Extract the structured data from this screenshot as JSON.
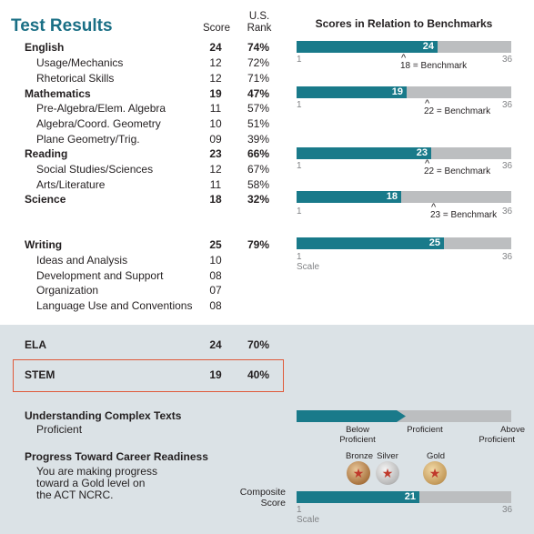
{
  "title": "Test Results",
  "headers": {
    "score": "Score",
    "us_rank_1": "U.S.",
    "us_rank_2": "Rank",
    "benchmarks": "Scores in Relation to Benchmarks"
  },
  "rows": {
    "english": {
      "label": "English",
      "score": "24",
      "rank": "74%"
    },
    "usage": {
      "label": "Usage/Mechanics",
      "score": "12",
      "rank": "72%"
    },
    "rhetorical": {
      "label": "Rhetorical Skills",
      "score": "12",
      "rank": "71%"
    },
    "math": {
      "label": "Mathematics",
      "score": "19",
      "rank": "47%"
    },
    "prealg": {
      "label": "Pre-Algebra/Elem. Algebra",
      "score": "11",
      "rank": "57%"
    },
    "algcoord": {
      "label": "Algebra/Coord. Geometry",
      "score": "10",
      "rank": "51%"
    },
    "plane": {
      "label": "Plane Geometry/Trig.",
      "score": "09",
      "rank": "39%"
    },
    "reading": {
      "label": "Reading",
      "score": "23",
      "rank": "66%"
    },
    "social": {
      "label": "Social Studies/Sciences",
      "score": "12",
      "rank": "67%"
    },
    "arts": {
      "label": "Arts/Literature",
      "score": "11",
      "rank": "58%"
    },
    "science": {
      "label": "Science",
      "score": "18",
      "rank": "32%"
    },
    "writing": {
      "label": "Writing",
      "score": "25",
      "rank": "79%"
    },
    "ideas": {
      "label": "Ideas and Analysis",
      "score": "10"
    },
    "development": {
      "label": "Development and Support",
      "score": "08"
    },
    "organization": {
      "label": "Organization",
      "score": "07"
    },
    "language": {
      "label": "Language Use and Conventions",
      "score": "08"
    },
    "ela": {
      "label": "ELA",
      "score": "24",
      "rank": "70%"
    },
    "stem": {
      "label": "STEM",
      "score": "19",
      "rank": "40%"
    }
  },
  "bars": {
    "scale_min": 1,
    "scale_max": 36,
    "min_label": "1",
    "max_label": "36",
    "scale_label": "Scale",
    "english": {
      "value": 24,
      "label": "24",
      "benchmark": 18,
      "benchmark_label": "18 = Benchmark"
    },
    "math": {
      "value": 19,
      "label": "19",
      "benchmark": 22,
      "benchmark_label": "22 = Benchmark"
    },
    "reading": {
      "value": 23,
      "label": "23",
      "benchmark": 22,
      "benchmark_label": "22 = Benchmark"
    },
    "science": {
      "value": 18,
      "label": "18",
      "benchmark": 23,
      "benchmark_label": "23 = Benchmark"
    },
    "writing": {
      "value": 25,
      "label": "25"
    },
    "composite": {
      "value": 21,
      "label": "21"
    }
  },
  "caret": "^",
  "uct": {
    "title": "Understanding Complex Texts",
    "level": "Proficient",
    "level_fraction": 0.5,
    "labels": {
      "below_1": "Below",
      "below_2": "Proficient",
      "proficient": "Proficient",
      "above_1": "Above",
      "above_2": "Proficient"
    }
  },
  "career": {
    "title": "Progress Toward Career Readiness",
    "line1": "You are making progress",
    "line2": "toward a Gold level on",
    "line3": "the ACT NCRC.",
    "bronze": "Bronze",
    "silver": "Silver",
    "gold": "Gold",
    "composite_1": "Composite",
    "composite_2": "Score"
  },
  "colors": {
    "title": "#1a6f85",
    "bar_fill": "#197a8a",
    "bar_bg": "#bcbec0",
    "panel": "#dbe2e6",
    "highlight_box": "#e05a3a"
  }
}
